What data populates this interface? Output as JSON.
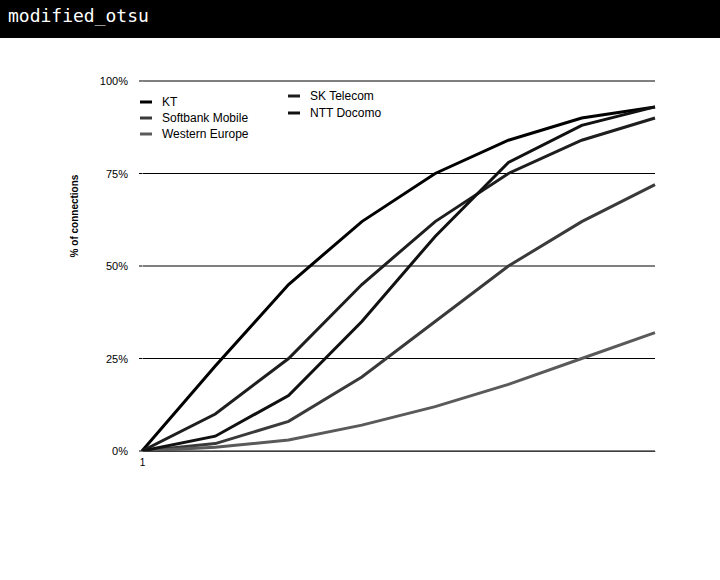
{
  "banner": "modified_otsu",
  "chart_data": {
    "type": "line",
    "y_label": "% of connections",
    "categories": [
      "1",
      null,
      null,
      null,
      null,
      null,
      null,
      null
    ],
    "series": [
      {
        "name": "KT",
        "color": "#000000",
        "values": [
          0,
          23,
          45,
          62,
          75,
          84,
          90,
          93
        ]
      },
      {
        "name": "Softbank Mobile",
        "color": "#3a3a3a",
        "values": [
          0,
          2,
          8,
          20,
          35,
          50,
          62,
          72
        ]
      },
      {
        "name": "Western Europe",
        "color": "#5a5a5a",
        "values": [
          0,
          1,
          3,
          7,
          12,
          18,
          25,
          32
        ]
      },
      {
        "name": "SK Telecom",
        "color": "#1e1e1e",
        "values": [
          0,
          10,
          25,
          45,
          62,
          75,
          84,
          90
        ]
      },
      {
        "name": "NTT Docomo",
        "color": "#111111",
        "values": [
          0,
          4,
          15,
          35,
          58,
          78,
          88,
          93
        ]
      }
    ],
    "ylim": [
      0,
      100
    ],
    "yticks": [
      {
        "value": 0,
        "label": "0%"
      },
      {
        "value": 25,
        "label": "25%"
      },
      {
        "value": 50,
        "label": "50%"
      },
      {
        "value": 75,
        "label": "75%"
      },
      {
        "value": 100,
        "label": "100%"
      }
    ],
    "grid": true,
    "legend": "top-left"
  }
}
